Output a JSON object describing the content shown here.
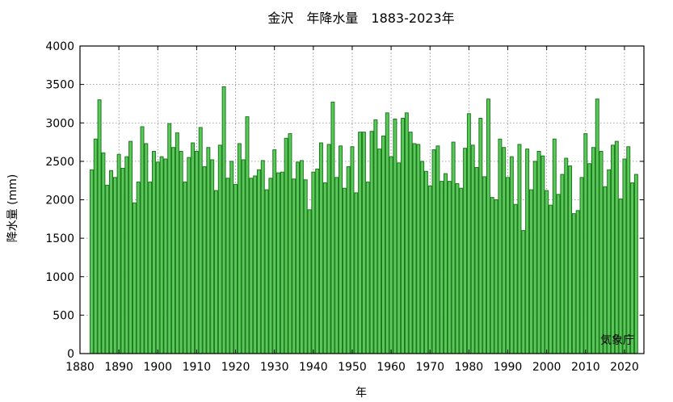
{
  "chart_data": {
    "type": "bar",
    "title": "金沢　年降水量　1883-2023年",
    "xlabel": "年",
    "ylabel": "降水量 (mm)",
    "credit": "気象庁",
    "xlim": [
      1880,
      2025
    ],
    "ylim": [
      0,
      4000
    ],
    "xticks": [
      1880,
      1890,
      1900,
      1910,
      1920,
      1930,
      1940,
      1950,
      1960,
      1970,
      1980,
      1990,
      2000,
      2010,
      2020
    ],
    "yticks": [
      0,
      500,
      1000,
      1500,
      2000,
      2500,
      3000,
      3500,
      4000
    ],
    "grid": true,
    "bar_color": "#5cc85c",
    "bar_edge_color": "#1a7a1a",
    "start_year": 1883,
    "values": [
      2390,
      2790,
      3300,
      2610,
      2190,
      2380,
      2290,
      2590,
      2410,
      2560,
      2760,
      1960,
      2230,
      2950,
      2730,
      2230,
      2630,
      2490,
      2560,
      2530,
      2990,
      2680,
      2870,
      2630,
      2230,
      2550,
      2740,
      2630,
      2940,
      2430,
      2680,
      2520,
      2120,
      2710,
      3470,
      2280,
      2500,
      2200,
      2730,
      2520,
      3080,
      2280,
      2310,
      2390,
      2510,
      2130,
      2280,
      2650,
      2350,
      2360,
      2800,
      2860,
      2270,
      2490,
      2510,
      2260,
      1870,
      2360,
      2400,
      2740,
      2220,
      2720,
      3270,
      2290,
      2700,
      2150,
      2430,
      2690,
      2090,
      2880,
      2880,
      2230,
      2890,
      3040,
      2660,
      2830,
      3130,
      2560,
      3050,
      2480,
      3060,
      3130,
      2880,
      2730,
      2720,
      2500,
      2370,
      2180,
      2650,
      2700,
      2240,
      2340,
      2240,
      2750,
      2210,
      2150,
      2670,
      3120,
      2710,
      2420,
      3060,
      2300,
      3310,
      2030,
      2000,
      2790,
      2680,
      2290,
      2560,
      1940,
      2720,
      1600,
      2660,
      2130,
      2500,
      2630,
      2570,
      2120,
      1930,
      2790,
      2070,
      2330,
      2540,
      2440,
      1820,
      1860,
      2290,
      2860,
      2470,
      2680,
      3310,
      2630,
      2170,
      2390,
      2710,
      2760,
      2010,
      2530,
      2690,
      2220,
      2330
    ]
  }
}
